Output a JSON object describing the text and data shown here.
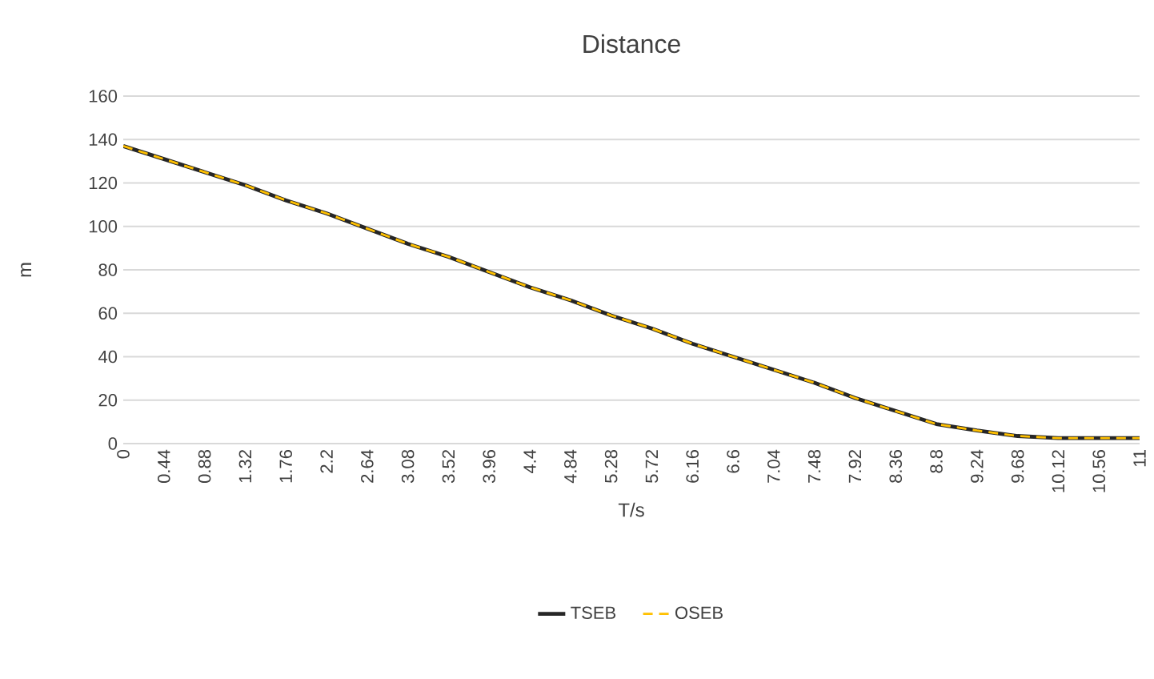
{
  "chart_data": {
    "type": "line",
    "title": "Distance",
    "xlabel": "T/s",
    "ylabel": "m",
    "categories": [
      "0",
      "0.44",
      "0.88",
      "1.32",
      "1.76",
      "2.2",
      "2.64",
      "3.08",
      "3.52",
      "3.96",
      "4.4",
      "4.84",
      "5.28",
      "5.72",
      "6.16",
      "6.6",
      "7.04",
      "7.48",
      "7.92",
      "8.36",
      "8.8",
      "9.24",
      "9.68",
      "10.12",
      "10.56",
      "11"
    ],
    "series": [
      {
        "name": "TSEB",
        "color": "#262626",
        "line_style": "solid",
        "values": [
          137,
          131,
          125,
          119,
          112,
          106,
          99,
          92,
          86,
          79,
          72,
          66,
          59,
          53,
          46,
          40,
          34,
          28,
          21,
          15,
          9,
          6,
          3.5,
          2.5,
          2.5,
          2.5
        ]
      },
      {
        "name": "OSEB",
        "color": "#ffc000",
        "line_style": "dashed",
        "values": [
          137,
          131,
          125,
          119,
          112,
          106,
          99,
          92,
          86,
          79,
          72,
          66,
          59,
          53,
          46,
          40,
          34,
          28,
          21,
          15,
          9,
          6,
          3.5,
          2.5,
          2.5,
          2.5
        ]
      }
    ],
    "ylim": [
      0,
      160
    ],
    "yticks": [
      0,
      20,
      40,
      60,
      80,
      100,
      120,
      140,
      160
    ],
    "grid": "y",
    "legend": "bottom"
  }
}
